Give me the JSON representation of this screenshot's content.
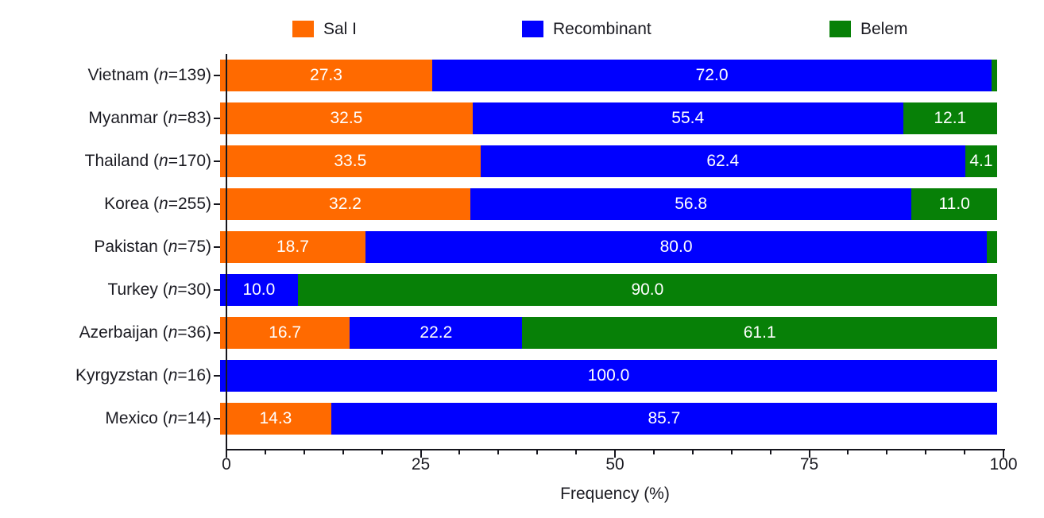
{
  "chart_data": {
    "type": "bar",
    "subtype": "stacked_horizontal",
    "title": "",
    "xlabel": "Frequency (%)",
    "ylabel": "",
    "xlim": [
      0,
      100
    ],
    "x_major_ticks": [
      0,
      25,
      50,
      75,
      100
    ],
    "x_minor_tick_step": 5,
    "grid": false,
    "legend_position": "top",
    "n_symbol": "n",
    "series": [
      {
        "name": "Sal I",
        "color": "#FF6A00"
      },
      {
        "name": "Recombinant",
        "color": "#0000FF"
      },
      {
        "name": "Belem",
        "color": "#078007"
      }
    ],
    "rows": [
      {
        "country": "Vietnam",
        "n": "139",
        "values": [
          27.3,
          72.0,
          0.7
        ],
        "value_labels": [
          "27.3",
          "72.0",
          ""
        ]
      },
      {
        "country": "Myanmar",
        "n": "83",
        "values": [
          32.5,
          55.4,
          12.1
        ],
        "value_labels": [
          "32.5",
          "55.4",
          "12.1"
        ]
      },
      {
        "country": "Thailand",
        "n": "170",
        "values": [
          33.5,
          62.4,
          4.1
        ],
        "value_labels": [
          "33.5",
          "62.4",
          "4.1"
        ]
      },
      {
        "country": "Korea",
        "n": "255",
        "values": [
          32.2,
          56.8,
          11.0
        ],
        "value_labels": [
          "32.2",
          "56.8",
          "11.0"
        ]
      },
      {
        "country": "Pakistan",
        "n": "75",
        "values": [
          18.7,
          80.0,
          1.3
        ],
        "value_labels": [
          "18.7",
          "80.0",
          ""
        ]
      },
      {
        "country": "Turkey",
        "n": "30",
        "values": [
          0,
          10.0,
          90.0
        ],
        "value_labels": [
          "",
          "10.0",
          "90.0"
        ]
      },
      {
        "country": "Azerbaijan",
        "n": "36",
        "values": [
          16.7,
          22.2,
          61.1
        ],
        "value_labels": [
          "16.7",
          "22.2",
          "61.1"
        ]
      },
      {
        "country": "Kyrgyzstan",
        "n": "16",
        "values": [
          0,
          100.0,
          0
        ],
        "value_labels": [
          "",
          "100.0",
          ""
        ]
      },
      {
        "country": "Mexico",
        "n": "14",
        "values": [
          14.3,
          85.7,
          0
        ],
        "value_labels": [
          "14.3",
          "85.7",
          ""
        ]
      }
    ],
    "colors": {
      "text": "#1B1B22",
      "axis": "#16161D",
      "value_label": "#FFFFFF",
      "background": "#FFFFFF"
    }
  }
}
